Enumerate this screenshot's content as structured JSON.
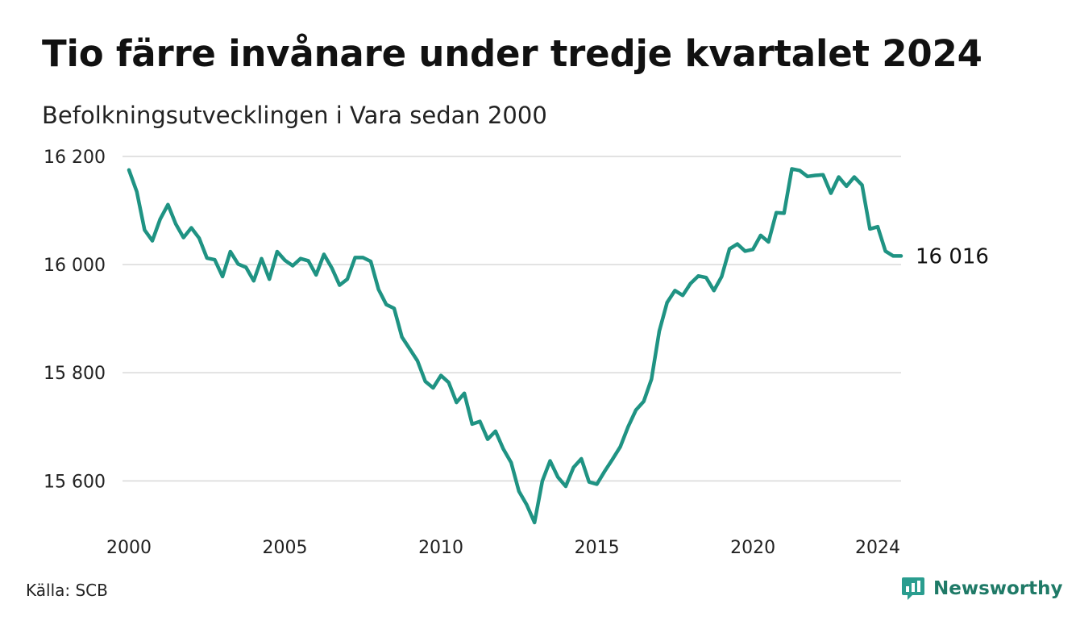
{
  "chart_data": {
    "type": "line",
    "title": "Tio färre invånare under tredje kvartalet 2024",
    "subtitle": "Befolkningsutvecklingen i Vara sedan 2000",
    "xlabel": "",
    "ylabel": "",
    "xlim": [
      2000,
      2024.75
    ],
    "ylim": [
      15520,
      16200
    ],
    "y_ticks": [
      15600,
      15800,
      16000,
      16200
    ],
    "y_tick_labels": [
      "15 600",
      "15 800",
      "16 000",
      "16 200"
    ],
    "x_ticks": [
      2000,
      2005,
      2010,
      2015,
      2020,
      2024
    ],
    "x_tick_labels": [
      "2000",
      "2005",
      "2010",
      "2015",
      "2020",
      "2024"
    ],
    "grid": "horizontal",
    "legend": "none",
    "line_color": "#1f9383",
    "end_label": "16 016",
    "series": [
      {
        "x": [
          2000.0,
          2000.25,
          2000.5,
          2000.75,
          2001.0,
          2001.25,
          2001.5,
          2001.75,
          2002.0,
          2002.25,
          2002.5,
          2002.75,
          2003.0,
          2003.25,
          2003.5,
          2003.75,
          2004.0,
          2004.25,
          2004.5,
          2004.75,
          2005.0,
          2005.25,
          2005.5,
          2005.75,
          2006.0,
          2006.25,
          2006.5,
          2006.75,
          2007.0,
          2007.25,
          2007.5,
          2007.75,
          2008.0,
          2008.25,
          2008.5,
          2008.75,
          2009.0,
          2009.25,
          2009.5,
          2009.75,
          2010.0,
          2010.25,
          2010.5,
          2010.75,
          2011.0,
          2011.25,
          2011.5,
          2011.75,
          2012.0,
          2012.25,
          2012.5,
          2012.75,
          2013.0,
          2013.25,
          2013.5,
          2013.75,
          2014.0,
          2014.25,
          2014.5,
          2014.75,
          2015.0,
          2015.25,
          2015.5,
          2015.75,
          2016.0,
          2016.25,
          2016.5,
          2016.75,
          2017.0,
          2017.25,
          2017.5,
          2017.75,
          2018.0,
          2018.25,
          2018.5,
          2018.75,
          2019.0,
          2019.25,
          2019.5,
          2019.75,
          2020.0,
          2020.25,
          2020.5,
          2020.75,
          2021.0,
          2021.25,
          2021.5,
          2021.75,
          2022.0,
          2022.25,
          2022.5,
          2022.75,
          2023.0,
          2023.25,
          2023.5,
          2023.75,
          2024.0,
          2024.25,
          2024.5,
          2024.75
        ],
        "values": [
          16175,
          16135,
          16064,
          16044,
          16084,
          16111,
          16075,
          16050,
          16068,
          16049,
          16012,
          16009,
          15978,
          16024,
          16001,
          15995,
          15970,
          16011,
          15973,
          16024,
          16008,
          15998,
          16011,
          16007,
          15981,
          16019,
          15994,
          15962,
          15973,
          16013,
          16013,
          16006,
          15954,
          15926,
          15919,
          15866,
          15844,
          15822,
          15784,
          15772,
          15795,
          15782,
          15745,
          15762,
          15705,
          15710,
          15677,
          15692,
          15659,
          15634,
          15581,
          15556,
          15523,
          15600,
          15637,
          15607,
          15590,
          15625,
          15641,
          15598,
          15594,
          15618,
          15640,
          15663,
          15700,
          15731,
          15747,
          15788,
          15877,
          15930,
          15952,
          15943,
          15965,
          15979,
          15976,
          15952,
          15978,
          16029,
          16038,
          16025,
          16028,
          16054,
          16042,
          16096,
          16095,
          16177,
          16174,
          16163,
          16165,
          16166,
          16132,
          16162,
          16145,
          16162,
          16147,
          16066,
          16070,
          16025,
          16016,
          16016
        ]
      }
    ]
  },
  "source": "Källa: SCB",
  "brand": "Newsworthy",
  "colors": {
    "accent": "#1f9383",
    "grid": "#d9d9d9",
    "brand": "#1f7a67"
  }
}
